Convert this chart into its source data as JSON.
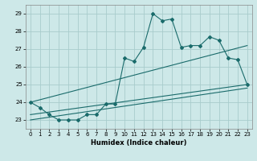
{
  "title": "",
  "xlabel": "Humidex (Indice chaleur)",
  "background_color": "#cde8e8",
  "grid_color": "#a8cccc",
  "line_color": "#1a6b6b",
  "xlim": [
    -0.5,
    23.5
  ],
  "ylim": [
    22.5,
    29.5
  ],
  "xticks": [
    0,
    1,
    2,
    3,
    4,
    5,
    6,
    7,
    8,
    9,
    10,
    11,
    12,
    13,
    14,
    15,
    16,
    17,
    18,
    19,
    20,
    21,
    22,
    23
  ],
  "yticks": [
    23,
    24,
    25,
    26,
    27,
    28,
    29
  ],
  "series1_x": [
    0,
    1,
    2,
    3,
    4,
    5,
    6,
    7,
    8,
    9,
    10,
    11,
    12,
    13,
    14,
    15,
    16,
    17,
    18,
    19,
    20,
    21,
    22,
    23
  ],
  "series1_y": [
    24.0,
    23.7,
    23.3,
    23.0,
    23.0,
    23.0,
    23.3,
    23.3,
    23.9,
    23.9,
    26.5,
    26.3,
    27.1,
    29.0,
    28.6,
    28.7,
    27.1,
    27.2,
    27.2,
    27.7,
    27.5,
    26.5,
    26.4,
    25.0
  ],
  "series2_x": [
    0,
    23
  ],
  "series2_y": [
    24.0,
    27.2
  ],
  "series3_x": [
    0,
    23
  ],
  "series3_y": [
    23.3,
    25.0
  ],
  "series4_x": [
    0,
    23
  ],
  "series4_y": [
    23.0,
    24.8
  ]
}
